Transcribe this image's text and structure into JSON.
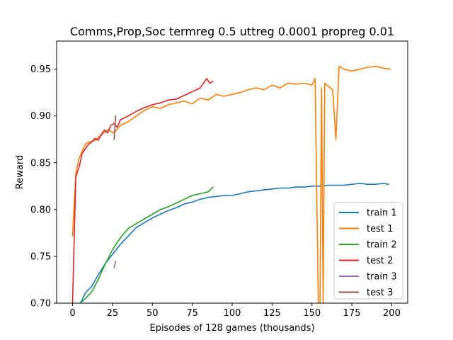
{
  "chart_data": {
    "type": "line",
    "title": "Comms,Prop,Soc termreg 0.5 uttreg 0.0001 propreg 0.01",
    "xlabel": "Episodes of 128 games (thousands)",
    "ylabel": "Reward",
    "xlim": [
      -10,
      210
    ],
    "ylim": [
      0.7,
      0.98
    ],
    "xticks": [
      "0",
      "25",
      "50",
      "75",
      "100",
      "125",
      "150",
      "175",
      "200"
    ],
    "xtick_values": [
      0,
      25,
      50,
      75,
      100,
      125,
      150,
      175,
      200
    ],
    "yticks": [
      "0.70",
      "0.75",
      "0.80",
      "0.85",
      "0.90",
      "0.95"
    ],
    "ytick_values": [
      0.7,
      0.75,
      0.8,
      0.85,
      0.9,
      0.95
    ],
    "grid": false,
    "legend_position": "bottom-right",
    "series": [
      {
        "name": "train 1",
        "color": "#1f77b4",
        "x": [
          5,
          8,
          12,
          16,
          20,
          25,
          30,
          35,
          40,
          45,
          50,
          55,
          60,
          65,
          70,
          75,
          80,
          85,
          90,
          95,
          100,
          105,
          110,
          115,
          120,
          125,
          130,
          135,
          140,
          145,
          150,
          155,
          160,
          165,
          170,
          175,
          180,
          185,
          190,
          195,
          198
        ],
        "y": [
          0.7,
          0.711,
          0.718,
          0.73,
          0.741,
          0.752,
          0.763,
          0.772,
          0.781,
          0.786,
          0.791,
          0.795,
          0.799,
          0.802,
          0.806,
          0.808,
          0.811,
          0.813,
          0.814,
          0.815,
          0.815,
          0.817,
          0.819,
          0.82,
          0.821,
          0.822,
          0.823,
          0.823,
          0.824,
          0.824,
          0.825,
          0.825,
          0.826,
          0.826,
          0.826,
          0.827,
          0.828,
          0.827,
          0.827,
          0.828,
          0.827
        ]
      },
      {
        "name": "test 1",
        "color": "#ff7f0e",
        "x": [
          0,
          2,
          4,
          6,
          8,
          10,
          14,
          18,
          22,
          26,
          30,
          35,
          40,
          45,
          50,
          55,
          60,
          65,
          70,
          75,
          80,
          85,
          90,
          95,
          100,
          105,
          110,
          115,
          120,
          125,
          130,
          135,
          140,
          145,
          150,
          152,
          154,
          155,
          156,
          157,
          158,
          160,
          163,
          165,
          167,
          170,
          175,
          180,
          185,
          190,
          195,
          199
        ],
        "y": [
          0.772,
          0.838,
          0.855,
          0.862,
          0.87,
          0.872,
          0.874,
          0.88,
          0.885,
          0.882,
          0.89,
          0.894,
          0.9,
          0.906,
          0.91,
          0.908,
          0.912,
          0.914,
          0.916,
          0.913,
          0.919,
          0.917,
          0.923,
          0.921,
          0.923,
          0.925,
          0.928,
          0.93,
          0.928,
          0.933,
          0.93,
          0.935,
          0.934,
          0.935,
          0.933,
          0.94,
          0.7,
          0.69,
          0.93,
          0.7,
          0.935,
          0.932,
          0.928,
          0.875,
          0.953,
          0.95,
          0.948,
          0.95,
          0.952,
          0.953,
          0.951,
          0.95
        ]
      },
      {
        "name": "train 2",
        "color": "#2ca02c",
        "x": [
          5,
          8,
          12,
          16,
          20,
          25,
          30,
          35,
          40,
          45,
          50,
          55,
          60,
          65,
          70,
          75,
          80,
          85,
          88
        ],
        "y": [
          0.7,
          0.705,
          0.712,
          0.725,
          0.74,
          0.757,
          0.77,
          0.78,
          0.785,
          0.79,
          0.795,
          0.8,
          0.803,
          0.807,
          0.811,
          0.815,
          0.817,
          0.819,
          0.824
        ]
      },
      {
        "name": "test 2",
        "color": "#d62728",
        "x": [
          0,
          2,
          4,
          6,
          8,
          10,
          12,
          14,
          16,
          18,
          20,
          22,
          24,
          26,
          28,
          30,
          35,
          40,
          45,
          50,
          55,
          60,
          65,
          70,
          75,
          80,
          84,
          86,
          88
        ],
        "y": [
          0.7,
          0.835,
          0.845,
          0.86,
          0.865,
          0.87,
          0.872,
          0.876,
          0.874,
          0.88,
          0.885,
          0.882,
          0.89,
          0.892,
          0.888,
          0.896,
          0.9,
          0.905,
          0.909,
          0.912,
          0.914,
          0.917,
          0.918,
          0.922,
          0.926,
          0.93,
          0.94,
          0.935,
          0.937
        ]
      },
      {
        "name": "train 3",
        "color": "#9467bd",
        "x": [
          26,
          27
        ],
        "y": [
          0.738,
          0.745
        ]
      },
      {
        "name": "test 3",
        "color": "#8c564b",
        "x": [
          26,
          27
        ],
        "y": [
          0.875,
          0.9
        ]
      }
    ]
  }
}
